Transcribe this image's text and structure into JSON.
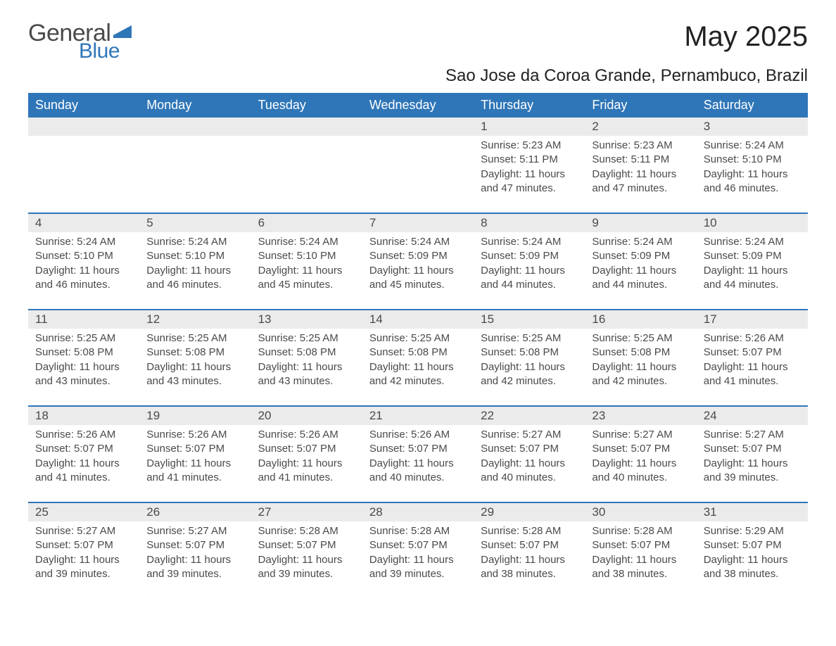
{
  "logo": {
    "text1": "General",
    "text2": "Blue",
    "flag_color": "#2f76b8"
  },
  "title": "May 2025",
  "subtitle": "Sao Jose da Coroa Grande, Pernambuco, Brazil",
  "colors": {
    "header_bg": "#2f76b8",
    "header_text": "#ffffff",
    "daynum_bg": "#ebebeb",
    "row_border": "#2f76b8",
    "body_text": "#4a4a4a",
    "page_bg": "#ffffff"
  },
  "type": "table",
  "columns": [
    "Sunday",
    "Monday",
    "Tuesday",
    "Wednesday",
    "Thursday",
    "Friday",
    "Saturday"
  ],
  "weeks": [
    [
      null,
      null,
      null,
      null,
      {
        "n": "1",
        "sunrise": "5:23 AM",
        "sunset": "5:11 PM",
        "daylight": "11 hours and 47 minutes."
      },
      {
        "n": "2",
        "sunrise": "5:23 AM",
        "sunset": "5:11 PM",
        "daylight": "11 hours and 47 minutes."
      },
      {
        "n": "3",
        "sunrise": "5:24 AM",
        "sunset": "5:10 PM",
        "daylight": "11 hours and 46 minutes."
      }
    ],
    [
      {
        "n": "4",
        "sunrise": "5:24 AM",
        "sunset": "5:10 PM",
        "daylight": "11 hours and 46 minutes."
      },
      {
        "n": "5",
        "sunrise": "5:24 AM",
        "sunset": "5:10 PM",
        "daylight": "11 hours and 46 minutes."
      },
      {
        "n": "6",
        "sunrise": "5:24 AM",
        "sunset": "5:10 PM",
        "daylight": "11 hours and 45 minutes."
      },
      {
        "n": "7",
        "sunrise": "5:24 AM",
        "sunset": "5:09 PM",
        "daylight": "11 hours and 45 minutes."
      },
      {
        "n": "8",
        "sunrise": "5:24 AM",
        "sunset": "5:09 PM",
        "daylight": "11 hours and 44 minutes."
      },
      {
        "n": "9",
        "sunrise": "5:24 AM",
        "sunset": "5:09 PM",
        "daylight": "11 hours and 44 minutes."
      },
      {
        "n": "10",
        "sunrise": "5:24 AM",
        "sunset": "5:09 PM",
        "daylight": "11 hours and 44 minutes."
      }
    ],
    [
      {
        "n": "11",
        "sunrise": "5:25 AM",
        "sunset": "5:08 PM",
        "daylight": "11 hours and 43 minutes."
      },
      {
        "n": "12",
        "sunrise": "5:25 AM",
        "sunset": "5:08 PM",
        "daylight": "11 hours and 43 minutes."
      },
      {
        "n": "13",
        "sunrise": "5:25 AM",
        "sunset": "5:08 PM",
        "daylight": "11 hours and 43 minutes."
      },
      {
        "n": "14",
        "sunrise": "5:25 AM",
        "sunset": "5:08 PM",
        "daylight": "11 hours and 42 minutes."
      },
      {
        "n": "15",
        "sunrise": "5:25 AM",
        "sunset": "5:08 PM",
        "daylight": "11 hours and 42 minutes."
      },
      {
        "n": "16",
        "sunrise": "5:25 AM",
        "sunset": "5:08 PM",
        "daylight": "11 hours and 42 minutes."
      },
      {
        "n": "17",
        "sunrise": "5:26 AM",
        "sunset": "5:07 PM",
        "daylight": "11 hours and 41 minutes."
      }
    ],
    [
      {
        "n": "18",
        "sunrise": "5:26 AM",
        "sunset": "5:07 PM",
        "daylight": "11 hours and 41 minutes."
      },
      {
        "n": "19",
        "sunrise": "5:26 AM",
        "sunset": "5:07 PM",
        "daylight": "11 hours and 41 minutes."
      },
      {
        "n": "20",
        "sunrise": "5:26 AM",
        "sunset": "5:07 PM",
        "daylight": "11 hours and 41 minutes."
      },
      {
        "n": "21",
        "sunrise": "5:26 AM",
        "sunset": "5:07 PM",
        "daylight": "11 hours and 40 minutes."
      },
      {
        "n": "22",
        "sunrise": "5:27 AM",
        "sunset": "5:07 PM",
        "daylight": "11 hours and 40 minutes."
      },
      {
        "n": "23",
        "sunrise": "5:27 AM",
        "sunset": "5:07 PM",
        "daylight": "11 hours and 40 minutes."
      },
      {
        "n": "24",
        "sunrise": "5:27 AM",
        "sunset": "5:07 PM",
        "daylight": "11 hours and 39 minutes."
      }
    ],
    [
      {
        "n": "25",
        "sunrise": "5:27 AM",
        "sunset": "5:07 PM",
        "daylight": "11 hours and 39 minutes."
      },
      {
        "n": "26",
        "sunrise": "5:27 AM",
        "sunset": "5:07 PM",
        "daylight": "11 hours and 39 minutes."
      },
      {
        "n": "27",
        "sunrise": "5:28 AM",
        "sunset": "5:07 PM",
        "daylight": "11 hours and 39 minutes."
      },
      {
        "n": "28",
        "sunrise": "5:28 AM",
        "sunset": "5:07 PM",
        "daylight": "11 hours and 39 minutes."
      },
      {
        "n": "29",
        "sunrise": "5:28 AM",
        "sunset": "5:07 PM",
        "daylight": "11 hours and 38 minutes."
      },
      {
        "n": "30",
        "sunrise": "5:28 AM",
        "sunset": "5:07 PM",
        "daylight": "11 hours and 38 minutes."
      },
      {
        "n": "31",
        "sunrise": "5:29 AM",
        "sunset": "5:07 PM",
        "daylight": "11 hours and 38 minutes."
      }
    ]
  ],
  "labels": {
    "sunrise": "Sunrise: ",
    "sunset": "Sunset: ",
    "daylight": "Daylight: "
  }
}
